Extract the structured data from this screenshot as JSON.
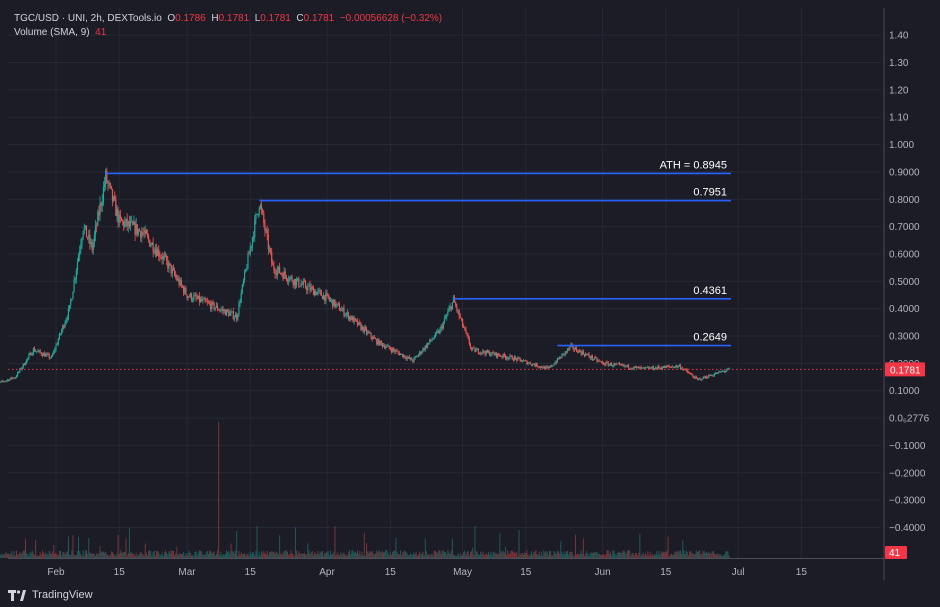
{
  "header": {
    "symbol": "TGC/USD",
    "meta": " · UNI, 2h, DEXTools.io",
    "o_label": "O",
    "o_value": "0.1786",
    "h_label": "H",
    "h_value": "0.1781",
    "l_label": "L",
    "l_value": "0.1781",
    "c_label": "C",
    "c_value": "0.1781",
    "change": "−0.00056628 (−0.32%)",
    "volume_label": "Volume (SMA, 9)",
    "volume_value": "41"
  },
  "brand": {
    "name": "TradingView"
  },
  "colors": {
    "background": "#1b1c26",
    "up": "#26a69a",
    "down": "#ef5350",
    "level_line": "#2962ff",
    "price_tag": "#f23645"
  },
  "chart_data": {
    "type": "candlestick",
    "x_axis": {
      "type": "date",
      "ticks": [
        "Feb",
        "15",
        "Mar",
        "15",
        "Apr",
        "15",
        "May",
        "15",
        "Jun",
        "15",
        "Jul",
        "15"
      ],
      "tick_dates": [
        "2024-02-01",
        "2024-02-15",
        "2024-03-01",
        "2024-03-15",
        "2024-04-01",
        "2024-04-15",
        "2024-05-01",
        "2024-05-15",
        "2024-06-01",
        "2024-06-15",
        "2024-07-01",
        "2024-07-15"
      ]
    },
    "y_axis": {
      "ticks": [
        "1.40",
        "1.30",
        "1.20",
        "1.10",
        "1.000",
        "0.9000",
        "0.8000",
        "0.7000",
        "0.6000",
        "0.5000",
        "0.4000",
        "0.3000",
        "0.2000",
        "0.1000",
        "0.0₆2776",
        "−0.1000",
        "−0.2000",
        "−0.3000",
        "−0.4000"
      ],
      "range": [
        -0.5,
        1.45
      ]
    },
    "price_path": [
      {
        "date": "2024-01-18",
        "price": 0.12
      },
      {
        "date": "2024-01-23",
        "price": 0.15
      },
      {
        "date": "2024-01-27",
        "price": 0.25
      },
      {
        "date": "2024-01-31",
        "price": 0.22
      },
      {
        "date": "2024-02-04",
        "price": 0.4
      },
      {
        "date": "2024-02-07",
        "price": 0.7
      },
      {
        "date": "2024-02-09",
        "price": 0.62
      },
      {
        "date": "2024-02-12",
        "price": 0.88
      },
      {
        "date": "2024-02-15",
        "price": 0.72
      },
      {
        "date": "2024-02-20",
        "price": 0.68
      },
      {
        "date": "2024-02-25",
        "price": 0.58
      },
      {
        "date": "2024-03-01",
        "price": 0.45
      },
      {
        "date": "2024-03-08",
        "price": 0.4
      },
      {
        "date": "2024-03-12",
        "price": 0.37
      },
      {
        "date": "2024-03-17",
        "price": 0.79
      },
      {
        "date": "2024-03-20",
        "price": 0.55
      },
      {
        "date": "2024-03-25",
        "price": 0.5
      },
      {
        "date": "2024-04-01",
        "price": 0.44
      },
      {
        "date": "2024-04-06",
        "price": 0.37
      },
      {
        "date": "2024-04-12",
        "price": 0.28
      },
      {
        "date": "2024-04-20",
        "price": 0.21
      },
      {
        "date": "2024-04-26",
        "price": 0.32
      },
      {
        "date": "2024-04-29",
        "price": 0.43
      },
      {
        "date": "2024-05-03",
        "price": 0.25
      },
      {
        "date": "2024-05-12",
        "price": 0.22
      },
      {
        "date": "2024-05-20",
        "price": 0.18
      },
      {
        "date": "2024-05-25",
        "price": 0.26
      },
      {
        "date": "2024-06-01",
        "price": 0.2
      },
      {
        "date": "2024-06-10",
        "price": 0.18
      },
      {
        "date": "2024-06-18",
        "price": 0.19
      },
      {
        "date": "2024-06-22",
        "price": 0.14
      },
      {
        "date": "2024-06-29",
        "price": 0.178
      }
    ],
    "levels": [
      {
        "label": "ATH = 0.8945",
        "value": 0.8945,
        "start_date": "2024-02-12"
      },
      {
        "label": "0.7951",
        "value": 0.7951,
        "start_date": "2024-03-17"
      },
      {
        "label": "0.4361",
        "value": 0.4361,
        "start_date": "2024-04-29"
      },
      {
        "label": "0.2649",
        "value": 0.2649,
        "start_date": "2024-05-22"
      }
    ],
    "last_price": {
      "value": 0.1781,
      "label": "0.1781"
    },
    "volume": {
      "last_label": "41",
      "spike_date": "2024-03-08"
    }
  }
}
